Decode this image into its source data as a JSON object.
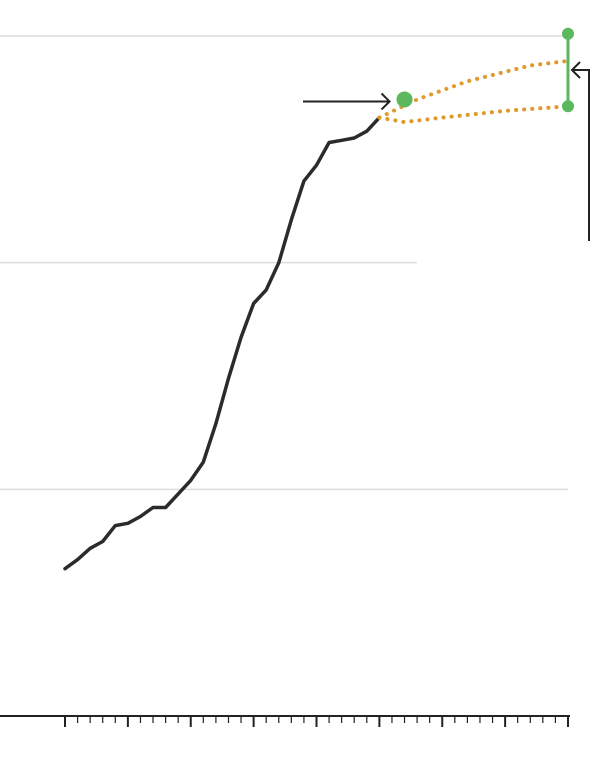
{
  "chart_data": {
    "type": "line",
    "title": "",
    "xlabel": "",
    "ylabel": "",
    "xlim": [
      0,
      40
    ],
    "ylim": [
      0,
      3
    ],
    "grid": true,
    "series": [
      {
        "style": "solid",
        "color": "#2b2b2b",
        "points": [
          [
            0,
            0.65
          ],
          [
            1,
            0.69
          ],
          [
            2,
            0.74
          ],
          [
            3,
            0.77
          ],
          [
            4,
            0.84
          ],
          [
            5,
            0.85
          ],
          [
            6,
            0.88
          ],
          [
            7,
            0.92
          ],
          [
            8,
            0.92
          ],
          [
            9,
            0.98
          ],
          [
            10,
            1.04
          ],
          [
            11,
            1.12
          ],
          [
            12,
            1.29
          ],
          [
            13,
            1.49
          ],
          [
            14,
            1.67
          ],
          [
            15,
            1.82
          ],
          [
            16,
            1.88
          ],
          [
            17,
            2.0
          ],
          [
            18,
            2.19
          ],
          [
            19,
            2.36
          ],
          [
            20,
            2.43
          ],
          [
            21,
            2.53
          ],
          [
            22,
            2.54
          ],
          [
            23,
            2.55
          ],
          [
            24,
            2.58
          ],
          [
            25,
            2.64
          ]
        ]
      },
      {
        "style": "dotted",
        "color": "#e09a2c",
        "points": [
          [
            25,
            2.64
          ],
          [
            28,
            2.72
          ],
          [
            32,
            2.8
          ],
          [
            37,
            2.87
          ],
          [
            40,
            2.89
          ]
        ]
      },
      {
        "style": "dotted",
        "color": "#e09a2c",
        "points": [
          [
            25,
            2.64
          ],
          [
            27,
            2.62
          ],
          [
            30,
            2.64
          ],
          [
            35,
            2.67
          ],
          [
            40,
            2.69
          ]
        ]
      }
    ],
    "markers": [
      {
        "kind": "point",
        "color": "#5cb85c",
        "x": 27,
        "y": 2.72
      },
      {
        "kind": "range",
        "color": "#5cb85c",
        "x": 40,
        "y_low": 2.69,
        "y_high": 3.01
      }
    ],
    "annotations": [
      {
        "kind": "arrow",
        "points_to": "green-point-marker"
      },
      {
        "kind": "bracket-arrow",
        "points_to": "green-range-marker"
      }
    ]
  }
}
